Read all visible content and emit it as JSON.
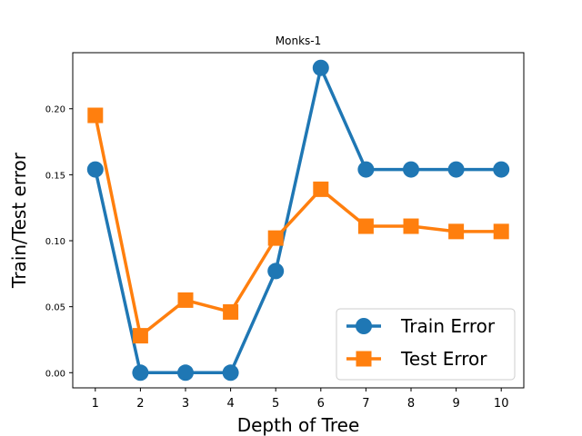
{
  "chart_data": {
    "type": "line",
    "title": "Monks-1",
    "xlabel": "Depth of Tree",
    "ylabel": "Train/Test error",
    "x": [
      1,
      2,
      3,
      4,
      5,
      6,
      7,
      8,
      9,
      10
    ],
    "x_ticks": [
      "1",
      "2",
      "3",
      "4",
      "5",
      "6",
      "7",
      "8",
      "9",
      "10"
    ],
    "y_ticks": [
      "0.00",
      "0.05",
      "0.10",
      "0.15",
      "0.20"
    ],
    "y_tick_values": [
      0.0,
      0.05,
      0.1,
      0.15,
      0.2
    ],
    "xlim": [
      0.5,
      10.5
    ],
    "ylim": [
      -0.0115,
      0.2425
    ],
    "grid": false,
    "legend_position": "lower-right",
    "series": [
      {
        "name": "Train Error",
        "values": [
          0.154,
          0.0,
          0.0,
          0.0,
          0.077,
          0.231,
          0.154,
          0.154,
          0.154,
          0.154
        ],
        "color": "#1f77b4",
        "marker": "circle"
      },
      {
        "name": "Test Error",
        "values": [
          0.195,
          0.028,
          0.055,
          0.046,
          0.102,
          0.139,
          0.111,
          0.111,
          0.107,
          0.107
        ],
        "color": "#ff7f0e",
        "marker": "square"
      }
    ]
  }
}
